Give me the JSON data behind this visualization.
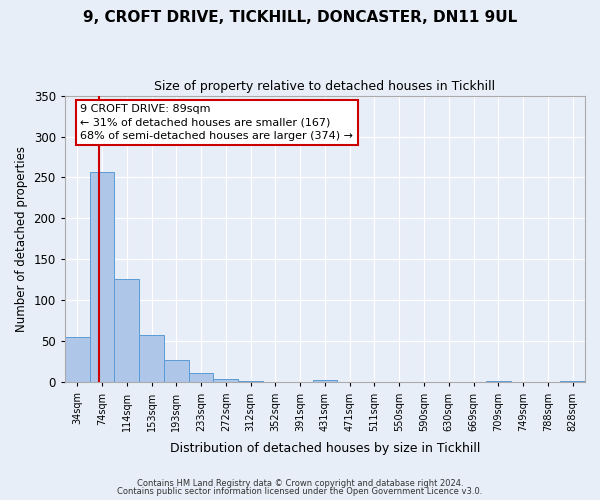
{
  "title1": "9, CROFT DRIVE, TICKHILL, DONCASTER, DN11 9UL",
  "title2": "Size of property relative to detached houses in Tickhill",
  "xlabel": "Distribution of detached houses by size in Tickhill",
  "ylabel": "Number of detached properties",
  "bar_labels": [
    "34sqm",
    "74sqm",
    "114sqm",
    "153sqm",
    "193sqm",
    "233sqm",
    "272sqm",
    "312sqm",
    "352sqm",
    "391sqm",
    "431sqm",
    "471sqm",
    "511sqm",
    "550sqm",
    "590sqm",
    "630sqm",
    "669sqm",
    "709sqm",
    "749sqm",
    "788sqm",
    "828sqm"
  ],
  "bar_values": [
    55,
    257,
    126,
    58,
    27,
    12,
    4,
    2,
    0,
    0,
    3,
    0,
    0,
    0,
    0,
    0,
    0,
    2,
    0,
    0,
    2
  ],
  "bar_color": "#aec6e8",
  "bar_edge_color": "#5b9bd5",
  "property_line_color": "#cc0000",
  "ylim": [
    0,
    350
  ],
  "yticks": [
    0,
    50,
    100,
    150,
    200,
    250,
    300,
    350
  ],
  "annotation_title": "9 CROFT DRIVE: 89sqm",
  "annotation_line1": "← 31% of detached houses are smaller (167)",
  "annotation_line2": "68% of semi-detached houses are larger (374) →",
  "annotation_box_color": "#cc0000",
  "footnote1": "Contains HM Land Registry data © Crown copyright and database right 2024.",
  "footnote2": "Contains public sector information licensed under the Open Government Licence v3.0.",
  "background_color": "#e8eef8",
  "grid_color": "#ffffff"
}
